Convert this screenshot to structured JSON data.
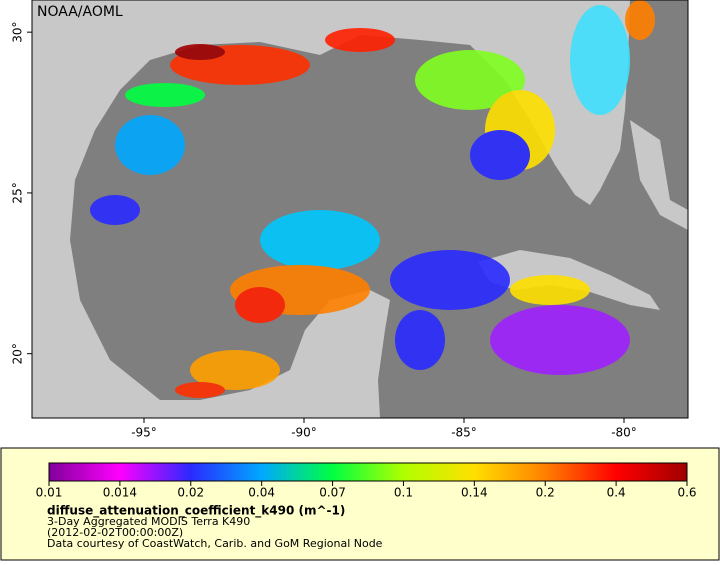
{
  "chart_data": {
    "type": "map",
    "title": "NOAA/AOML",
    "xlim": [
      -98.5,
      -78
    ],
    "ylim": [
      18,
      31
    ],
    "xticks": [
      {
        "value": -95,
        "label": "-95°"
      },
      {
        "value": -90,
        "label": "-90°"
      },
      {
        "value": -85,
        "label": "-85°"
      },
      {
        "value": -80,
        "label": "-80°"
      }
    ],
    "yticks": [
      {
        "value": 20,
        "label": "20°"
      },
      {
        "value": 25,
        "label": "25°"
      },
      {
        "value": 30,
        "label": "30°"
      }
    ],
    "colorbar": {
      "ticks": [
        0.01,
        0.014,
        0.02,
        0.04,
        0.07,
        0.1,
        0.14,
        0.2,
        0.4,
        0.6
      ],
      "colors": [
        "#80009a",
        "#ff00ff",
        "#2a2aff",
        "#00a8ff",
        "#00ff40",
        "#b0ff00",
        "#ffe000",
        "#ff8000",
        "#ff0000",
        "#a00000"
      ]
    },
    "variable": "diffuse_attenuation_coefficient_k490 (m^-1)",
    "description": "3-Day Aggregated MODIS Terra K490",
    "time": "(2012-02-02T00:00:00Z)",
    "credit": "Data courtesy of CoastWatch, Carib. and GoM Regional Node"
  }
}
